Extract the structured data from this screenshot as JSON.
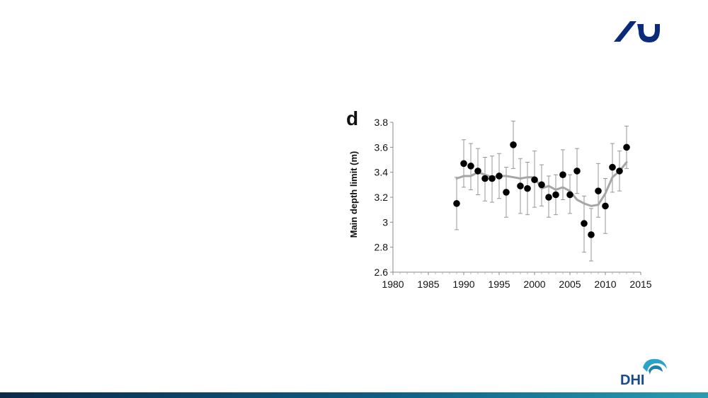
{
  "panel_label": "d",
  "logos": {
    "top_right": "aarhus-university-logo",
    "bottom_right": "DHI"
  },
  "colors": {
    "points": "#000000",
    "trend": "#a6a6a6",
    "error_bars": "#8c8c8c",
    "au_logo": "#0b2a7a",
    "dhi_text": "#1a4a8a",
    "bottom_bar": "#0e5f86"
  },
  "chart_data": {
    "type": "scatter",
    "title": "",
    "xlabel": "",
    "ylabel": "Main depth limit (m)",
    "xlim": [
      1980,
      2015
    ],
    "ylim": [
      2.6,
      3.8
    ],
    "x_ticks": [
      "1980",
      "1985",
      "1990",
      "1995",
      "2000",
      "2005",
      "2010",
      "2015"
    ],
    "y_ticks": [
      "2.6",
      "2.8",
      "3",
      "3.2",
      "3.4",
      "3.6",
      "3.8"
    ],
    "grid": false,
    "series": [
      {
        "kind": "points_with_error_bars",
        "x": [
          1989,
          1990,
          1991,
          1992,
          1993,
          1994,
          1995,
          1996,
          1997,
          1998,
          1999,
          2000,
          2001,
          2002,
          2003,
          2004,
          2005,
          2006,
          2007,
          2008,
          2009,
          2010,
          2011,
          2012,
          2013
        ],
        "y": [
          3.15,
          3.47,
          3.45,
          3.41,
          3.35,
          3.35,
          3.37,
          3.24,
          3.62,
          3.29,
          3.27,
          3.34,
          3.3,
          3.2,
          3.22,
          3.38,
          3.22,
          3.41,
          2.99,
          2.9,
          3.25,
          3.13,
          3.44,
          3.41,
          3.6
        ],
        "low": [
          2.94,
          3.28,
          3.26,
          3.22,
          3.17,
          3.16,
          3.19,
          3.04,
          3.43,
          3.07,
          3.06,
          3.12,
          3.13,
          3.04,
          3.06,
          3.18,
          3.07,
          3.23,
          2.76,
          2.69,
          3.04,
          2.91,
          3.24,
          3.25,
          3.43
        ],
        "high": [
          3.36,
          3.66,
          3.63,
          3.59,
          3.52,
          3.53,
          3.55,
          3.44,
          3.81,
          3.51,
          3.48,
          3.57,
          3.46,
          3.37,
          3.38,
          3.58,
          3.38,
          3.59,
          3.21,
          3.11,
          3.47,
          3.35,
          3.63,
          3.57,
          3.77
        ]
      },
      {
        "kind": "trend_line",
        "x": [
          1989,
          1990,
          1991,
          1992,
          1993,
          1994,
          1995,
          1996,
          1997,
          1998,
          1999,
          2000,
          2001,
          2002,
          2003,
          2004,
          2005,
          2006,
          2007,
          2008,
          2009,
          2010,
          2011,
          2012,
          2013
        ],
        "y": [
          3.35,
          3.37,
          3.37,
          3.4,
          3.38,
          3.36,
          3.37,
          3.37,
          3.36,
          3.35,
          3.36,
          3.36,
          3.27,
          3.29,
          3.26,
          3.28,
          3.25,
          3.18,
          3.15,
          3.13,
          3.14,
          3.23,
          3.36,
          3.41,
          3.48
        ]
      }
    ]
  }
}
